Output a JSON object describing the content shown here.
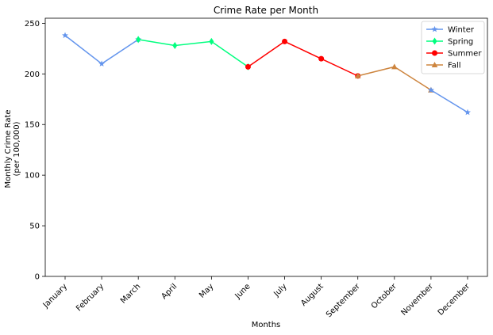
{
  "chart_data": {
    "type": "line",
    "title": "Crime Rate per Month",
    "xlabel": "Months",
    "ylabel_lines": [
      "Monthly Crime Rate",
      "(per 100,000)"
    ],
    "categories": [
      "January",
      "February",
      "March",
      "April",
      "May",
      "June",
      "July",
      "August",
      "September",
      "October",
      "November",
      "December"
    ],
    "ylim": [
      0,
      255
    ],
    "yticks": [
      0,
      50,
      100,
      150,
      200,
      250
    ],
    "grid": false,
    "legend_position": "top-right",
    "series": [
      {
        "name": "Winter",
        "color": "#6495ED",
        "marker": "star",
        "points": [
          [
            0,
            238
          ],
          [
            1,
            210
          ],
          [
            2,
            234
          ]
        ]
      },
      {
        "name": "Spring",
        "color": "#00FF7F",
        "marker": "diamond",
        "points": [
          [
            2,
            234
          ],
          [
            3,
            228
          ],
          [
            4,
            232
          ],
          [
            5,
            207
          ]
        ]
      },
      {
        "name": "Summer",
        "color": "#FF0000",
        "marker": "circle",
        "points": [
          [
            5,
            207
          ],
          [
            6,
            232
          ],
          [
            7,
            215
          ],
          [
            8,
            198
          ]
        ]
      },
      {
        "name": "Fall",
        "color": "#CD853F",
        "marker": "triangle",
        "points": [
          [
            8,
            198
          ],
          [
            9,
            207
          ],
          [
            10,
            184
          ]
        ]
      },
      {
        "name": "Winter",
        "color": "#6495ED",
        "marker": "star",
        "legend": false,
        "points": [
          [
            10,
            184
          ],
          [
            11,
            162
          ]
        ]
      }
    ]
  }
}
